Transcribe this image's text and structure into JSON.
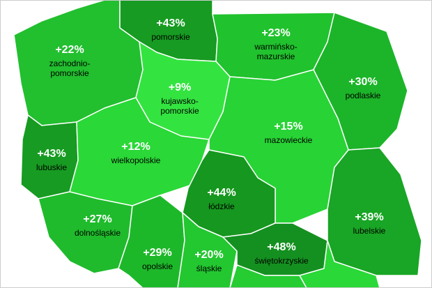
{
  "regions": {
    "zachodniopomorskie": {
      "pct": "+22%",
      "name": "zachodnio-pomorskie",
      "color": "#22bf2f"
    },
    "pomorskie": {
      "pct": "+43%",
      "name": "pomorskie",
      "color": "#179b22"
    },
    "warminskomazurskie": {
      "pct": "+23%",
      "name": "warmińsko-mazurskie",
      "color": "#20c22d"
    },
    "podlaskie": {
      "pct": "+30%",
      "name": "podlaskie",
      "color": "#1cb529"
    },
    "kujawskopomorskie": {
      "pct": "+9%",
      "name": "kujawsko-pomorskie",
      "color": "#33e440"
    },
    "lubuskie": {
      "pct": "+43%",
      "name": "lubuskie",
      "color": "#179b22"
    },
    "wielkopolskie": {
      "pct": "+12%",
      "name": "wielkopolskie",
      "color": "#2ad837"
    },
    "mazowieckie": {
      "pct": "+15%",
      "name": "mazowieckie",
      "color": "#28d335"
    },
    "lodzkie": {
      "pct": "+44%",
      "name": "łódzkie",
      "color": "#16971f"
    },
    "lubelskie": {
      "pct": "+39%",
      "name": "lubelskie",
      "color": "#19a525"
    },
    "dolnoslaskie": {
      "pct": "+27%",
      "name": "dolnośląskie",
      "color": "#1fbb2c"
    },
    "opolskie": {
      "pct": "+29%",
      "name": "opolskie",
      "color": "#1db82a"
    },
    "slaskie": {
      "pct": "+20%",
      "name": "śląskie",
      "color": "#23c730"
    },
    "swietokrzyskie": {
      "pct": "+48%",
      "name": "świętokrzyskie",
      "color": "#149020"
    },
    "malopolskie": {
      "color": "#25cc32"
    },
    "podkarpackie": {
      "color": "#2ad837"
    }
  },
  "border_color": "#ffffff",
  "frame_color": "#cccccc"
}
